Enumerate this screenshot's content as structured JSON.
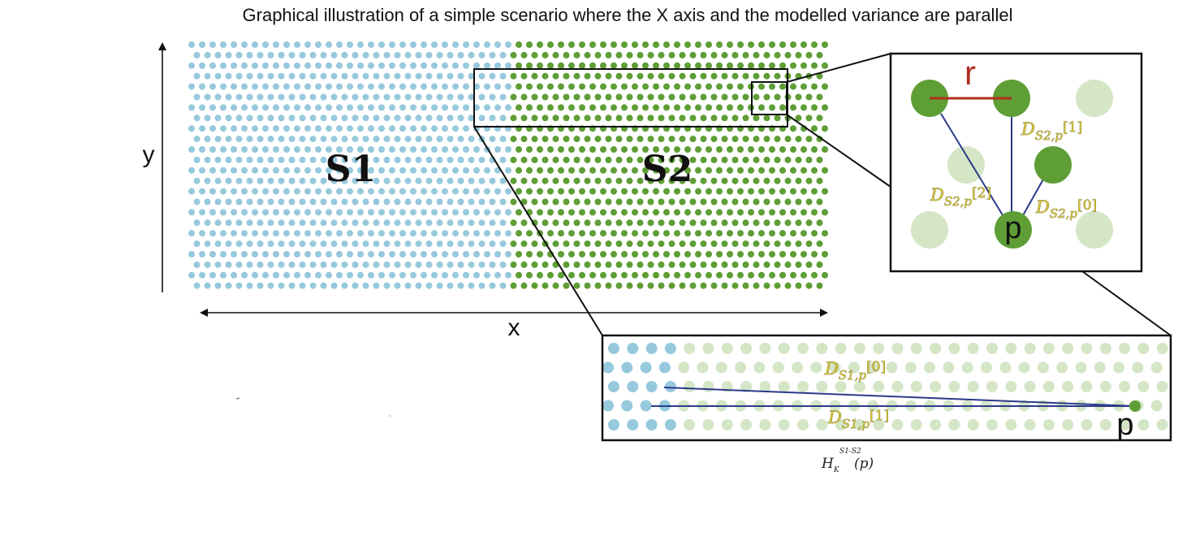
{
  "title": "Graphical illustration of a simple scenario where the X axis and the modelled variance are parallel",
  "axes": {
    "x_label": "x",
    "y_label": "y"
  },
  "regions": {
    "s1_label": "S1",
    "s2_label": "S2"
  },
  "colors": {
    "s1_dot": "#97c9dd",
    "s2_dot": "#5e9e35",
    "s2_dot_faint": "#d4e6c6",
    "radius_line": "#b03020",
    "distance_line": "#2b3a8a",
    "frame": "#111111"
  },
  "zoom_small": {
    "radius_label": "r",
    "point_label": "p",
    "distances": [
      {
        "main": "D",
        "sub": "S2,p",
        "idx": "[1]"
      },
      {
        "main": "D",
        "sub": "S2,p",
        "idx": "[2]"
      },
      {
        "main": "D",
        "sub": "S2,p",
        "idx": "[0]"
      }
    ]
  },
  "zoom_large": {
    "point_label": "p",
    "distances": [
      {
        "main": "D",
        "sub": "S1,p",
        "idx": "[0]"
      },
      {
        "main": "D",
        "sub": "S1,p",
        "idx": "[1]"
      }
    ],
    "caption": {
      "main": "H",
      "sub": "K",
      "sup": "S1-S2",
      "arg": "(p)"
    }
  }
}
